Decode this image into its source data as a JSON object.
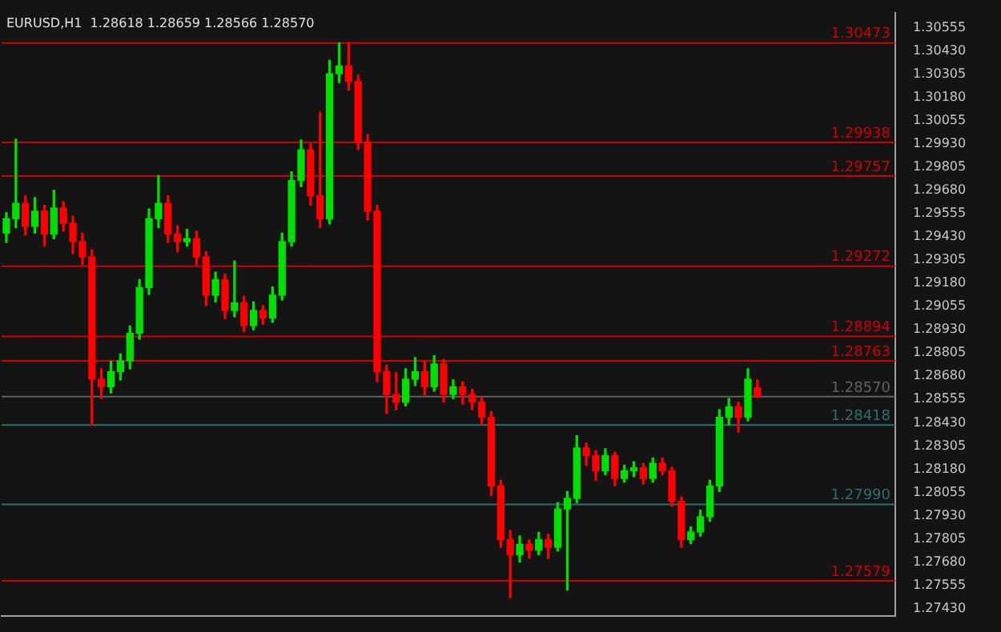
{
  "chart_data": {
    "type": "candlestick",
    "title": "EURUSD,H1  1.28618 1.28659 1.28566 1.28570",
    "categories": [
      null,
      null,
      null,
      null,
      null,
      null,
      null,
      null,
      null,
      null,
      null,
      null,
      null,
      null,
      null,
      null,
      null,
      null,
      null,
      null,
      null,
      null,
      null,
      null,
      null,
      null,
      null,
      null,
      null,
      null,
      null,
      null,
      null,
      null,
      null,
      null,
      null,
      null,
      null,
      null,
      null,
      null,
      null,
      null,
      null,
      null,
      null,
      null,
      null,
      null,
      null,
      null,
      null,
      null,
      null,
      null,
      null,
      null,
      null,
      null,
      null,
      null,
      null,
      null,
      null,
      null,
      null,
      null,
      null,
      null,
      null,
      null,
      null,
      null,
      null,
      null,
      null,
      null,
      null,
      null,
      null,
      null,
      null,
      null,
      null,
      null,
      null,
      null,
      null,
      null,
      null,
      null,
      null,
      null
    ],
    "ohlc": [
      [
        1.2945,
        1.2956,
        1.294,
        1.29527
      ],
      [
        1.29527,
        1.29955,
        1.2948,
        1.2961
      ],
      [
        1.2961,
        1.2965,
        1.2944,
        1.29486
      ],
      [
        1.29486,
        1.2964,
        1.2945,
        1.29568
      ],
      [
        1.29568,
        1.296,
        1.2938,
        1.29445
      ],
      [
        1.29445,
        1.2968,
        1.2942,
        1.29585
      ],
      [
        1.29585,
        1.2962,
        1.2946,
        1.29503
      ],
      [
        1.29503,
        1.2954,
        1.2934,
        1.29404
      ],
      [
        1.29404,
        1.2945,
        1.2928,
        1.29322
      ],
      [
        1.29322,
        1.2936,
        1.28418,
        1.28664
      ],
      [
        1.28664,
        1.2872,
        1.2856,
        1.28623
      ],
      [
        1.28623,
        1.2876,
        1.2859,
        1.28705
      ],
      [
        1.28705,
        1.288,
        1.2866,
        1.28763
      ],
      [
        1.28763,
        1.2895,
        1.2872,
        1.28911
      ],
      [
        1.28911,
        1.292,
        1.2888,
        1.29157
      ],
      [
        1.29157,
        1.2958,
        1.2912,
        1.29527
      ],
      [
        1.29527,
        1.2976,
        1.2948,
        1.2961
      ],
      [
        1.2961,
        1.2965,
        1.294,
        1.29445
      ],
      [
        1.29445,
        1.2949,
        1.2935,
        1.29404
      ],
      [
        1.29404,
        1.2947,
        1.2938,
        1.2942
      ],
      [
        1.2942,
        1.2946,
        1.2928,
        1.29322
      ],
      [
        1.29322,
        1.2935,
        1.2906,
        1.29116
      ],
      [
        1.29116,
        1.2924,
        1.2908,
        1.29199
      ],
      [
        1.29199,
        1.2923,
        1.2899,
        1.29034
      ],
      [
        1.29034,
        1.293,
        1.29,
        1.29075
      ],
      [
        1.29075,
        1.2911,
        1.2892,
        1.28952
      ],
      [
        1.28952,
        1.2908,
        1.2893,
        1.29034
      ],
      [
        1.29034,
        1.2906,
        1.2896,
        1.28993
      ],
      [
        1.28993,
        1.2916,
        1.2897,
        1.29116
      ],
      [
        1.29116,
        1.2945,
        1.2909,
        1.29404
      ],
      [
        1.29404,
        1.2978,
        1.2938,
        1.29733
      ],
      [
        1.29733,
        1.2995,
        1.297,
        1.29897
      ],
      [
        1.29897,
        1.2993,
        1.296,
        1.29651
      ],
      [
        1.29651,
        1.301,
        1.2948,
        1.29527
      ],
      [
        1.29527,
        1.3038,
        1.295,
        1.30308
      ],
      [
        1.30308,
        1.30473,
        1.3026,
        1.30349
      ],
      [
        1.30349,
        1.30473,
        1.3022,
        1.30267
      ],
      [
        1.30267,
        1.303,
        1.299,
        1.29938
      ],
      [
        1.29938,
        1.2998,
        1.2952,
        1.29568
      ],
      [
        1.29568,
        1.296,
        1.2865,
        1.28705
      ],
      [
        1.28705,
        1.2874,
        1.2848,
        1.28582
      ],
      [
        1.28582,
        1.287,
        1.285,
        1.28541
      ],
      [
        1.28541,
        1.2872,
        1.2852,
        1.28664
      ],
      [
        1.28664,
        1.2878,
        1.2863,
        1.28705
      ],
      [
        1.28705,
        1.2876,
        1.2858,
        1.28623
      ],
      [
        1.28623,
        1.2879,
        1.286,
        1.28746
      ],
      [
        1.28746,
        1.2877,
        1.2854,
        1.28582
      ],
      [
        1.28582,
        1.2866,
        1.2856,
        1.28623
      ],
      [
        1.28623,
        1.2865,
        1.2853,
        1.28582
      ],
      [
        1.28582,
        1.2861,
        1.285,
        1.28541
      ],
      [
        1.28541,
        1.2857,
        1.2842,
        1.28459
      ],
      [
        1.28459,
        1.2849,
        1.2804,
        1.28089
      ],
      [
        1.28089,
        1.2812,
        1.2776,
        1.27801
      ],
      [
        1.27801,
        1.2785,
        1.27489,
        1.27719
      ],
      [
        1.27719,
        1.2782,
        1.2768,
        1.27776
      ],
      [
        1.27776,
        1.278,
        1.277,
        1.27744
      ],
      [
        1.27744,
        1.2784,
        1.2772,
        1.27801
      ],
      [
        1.27801,
        1.2783,
        1.277,
        1.2776
      ],
      [
        1.2776,
        1.28,
        1.2774,
        1.27966
      ],
      [
        1.27966,
        1.2806,
        1.2753,
        1.28023
      ],
      [
        1.28023,
        1.2836,
        1.28,
        1.28294
      ],
      [
        1.28294,
        1.2832,
        1.282,
        1.28253
      ],
      [
        1.28253,
        1.2828,
        1.2812,
        1.28171
      ],
      [
        1.28171,
        1.2829,
        1.2815,
        1.28253
      ],
      [
        1.28253,
        1.2827,
        1.2809,
        1.2813
      ],
      [
        1.2813,
        1.282,
        1.2811,
        1.28171
      ],
      [
        1.28171,
        1.2822,
        1.2814,
        1.28187
      ],
      [
        1.28187,
        1.2821,
        1.281,
        1.2813
      ],
      [
        1.2813,
        1.2824,
        1.2811,
        1.28212
      ],
      [
        1.28212,
        1.2824,
        1.2815,
        1.28171
      ],
      [
        1.28171,
        1.2819,
        1.2798,
        1.28007
      ],
      [
        1.28007,
        1.2803,
        1.2776,
        1.27801
      ],
      [
        1.27801,
        1.2787,
        1.2778,
        1.27842
      ],
      [
        1.27842,
        1.2796,
        1.2782,
        1.27924
      ],
      [
        1.27924,
        1.2812,
        1.279,
        1.28089
      ],
      [
        1.28089,
        1.285,
        1.2806,
        1.28459
      ],
      [
        1.28459,
        1.2856,
        1.2842,
        1.28516
      ],
      [
        1.28516,
        1.2854,
        1.2838,
        1.28459
      ],
      [
        1.28459,
        1.2872,
        1.2844,
        1.28664
      ],
      [
        1.28618,
        1.28659,
        1.28566,
        1.2857
      ],
      null,
      null,
      null,
      null,
      null,
      null,
      null,
      null,
      null,
      null,
      null,
      null,
      null,
      null
    ],
    "colors": [
      "#00e000",
      "#00e000",
      "#ff0000",
      "#00e000",
      "#ff0000",
      "#00e000",
      "#ff0000",
      "#ff0000",
      "#ff0000",
      "#ff0000",
      "#ff0000",
      "#00e000",
      "#00e000",
      "#00e000",
      "#00e000",
      "#00e000",
      "#00e000",
      "#ff0000",
      "#ff0000",
      "#00e000",
      "#ff0000",
      "#ff0000",
      "#00e000",
      "#ff0000",
      "#00e000",
      "#ff0000",
      "#00e000",
      "#ff0000",
      "#00e000",
      "#00e000",
      "#00e000",
      "#00e000",
      "#ff0000",
      "#ff0000",
      "#00e000",
      "#00e000",
      "#ff0000",
      "#ff0000",
      "#ff0000",
      "#ff0000",
      "#ff0000",
      "#ff0000",
      "#00e000",
      "#00e000",
      "#ff0000",
      "#00e000",
      "#ff0000",
      "#00e000",
      "#ff0000",
      "#ff0000",
      "#ff0000",
      "#ff0000",
      "#ff0000",
      "#ff0000",
      "#00e000",
      "#ff0000",
      "#00e000",
      "#ff0000",
      "#00e000",
      "#00e000",
      "#00e000",
      "#ff0000",
      "#ff0000",
      "#00e000",
      "#ff0000",
      "#00e000",
      "#00e000",
      "#ff0000",
      "#00e000",
      "#ff0000",
      "#ff0000",
      "#ff0000",
      "#00e000",
      "#00e000",
      "#00e000",
      "#00e000",
      "#00e000",
      "#ff0000",
      "#00e000",
      "#ff0000",
      null,
      null,
      null,
      null,
      null,
      null,
      null,
      null,
      null,
      null,
      null,
      null,
      null,
      null
    ],
    "ylim": [
      1.2739,
      1.30637
    ],
    "yticks": [
      {
        "value": 1.2743,
        "label": "1.27430"
      },
      {
        "value": 1.27555,
        "label": "1.27555"
      },
      {
        "value": 1.2768,
        "label": "1.27680"
      },
      {
        "value": 1.27805,
        "label": "1.27805"
      },
      {
        "value": 1.2793,
        "label": "1.27930"
      },
      {
        "value": 1.28055,
        "label": "1.28055"
      },
      {
        "value": 1.2818,
        "label": "1.28180"
      },
      {
        "value": 1.28305,
        "label": "1.28305"
      },
      {
        "value": 1.2843,
        "label": "1.28430"
      },
      {
        "value": 1.28555,
        "label": "1.28555"
      },
      {
        "value": 1.2868,
        "label": "1.28680"
      },
      {
        "value": 1.28805,
        "label": "1.28805"
      },
      {
        "value": 1.2893,
        "label": "1.28930"
      },
      {
        "value": 1.29055,
        "label": "1.29055"
      },
      {
        "value": 1.2918,
        "label": "1.29180"
      },
      {
        "value": 1.29305,
        "label": "1.29305"
      },
      {
        "value": 1.2943,
        "label": "1.29430"
      },
      {
        "value": 1.29555,
        "label": "1.29555"
      },
      {
        "value": 1.2968,
        "label": "1.29680"
      },
      {
        "value": 1.29805,
        "label": "1.29805"
      },
      {
        "value": 1.2993,
        "label": "1.29930"
      },
      {
        "value": 1.30055,
        "label": "1.30055"
      },
      {
        "value": 1.3018,
        "label": "1.30180"
      },
      {
        "value": 1.30305,
        "label": "1.30305"
      },
      {
        "value": 1.3043,
        "label": "1.30430"
      },
      {
        "value": 1.30555,
        "label": "1.30555"
      }
    ],
    "ref_lines": [
      {
        "axis": "y",
        "value": 1.30473,
        "label": "1.30473",
        "color": "#d00000"
      },
      {
        "axis": "y",
        "value": 1.29938,
        "label": "1.29938",
        "color": "#d00000"
      },
      {
        "axis": "y",
        "value": 1.29757,
        "label": "1.29757",
        "color": "#d00000"
      },
      {
        "axis": "y",
        "value": 1.29272,
        "label": "1.29272",
        "color": "#d00000"
      },
      {
        "axis": "y",
        "value": 1.28894,
        "label": "1.28894",
        "color": "#d00000"
      },
      {
        "axis": "y",
        "value": 1.28763,
        "label": "1.28763",
        "color": "#d00000"
      },
      {
        "axis": "y",
        "value": 1.2857,
        "label": "1.28570",
        "color": "#606060"
      },
      {
        "axis": "y",
        "value": 1.28418,
        "label": "1.28418",
        "color": "#2a7070"
      },
      {
        "axis": "y",
        "value": 1.2799,
        "label": "1.27990",
        "color": "#2a7070"
      },
      {
        "axis": "y",
        "value": 1.27579,
        "label": "1.27579",
        "color": "#d00000"
      }
    ],
    "tick_labels": "y"
  }
}
